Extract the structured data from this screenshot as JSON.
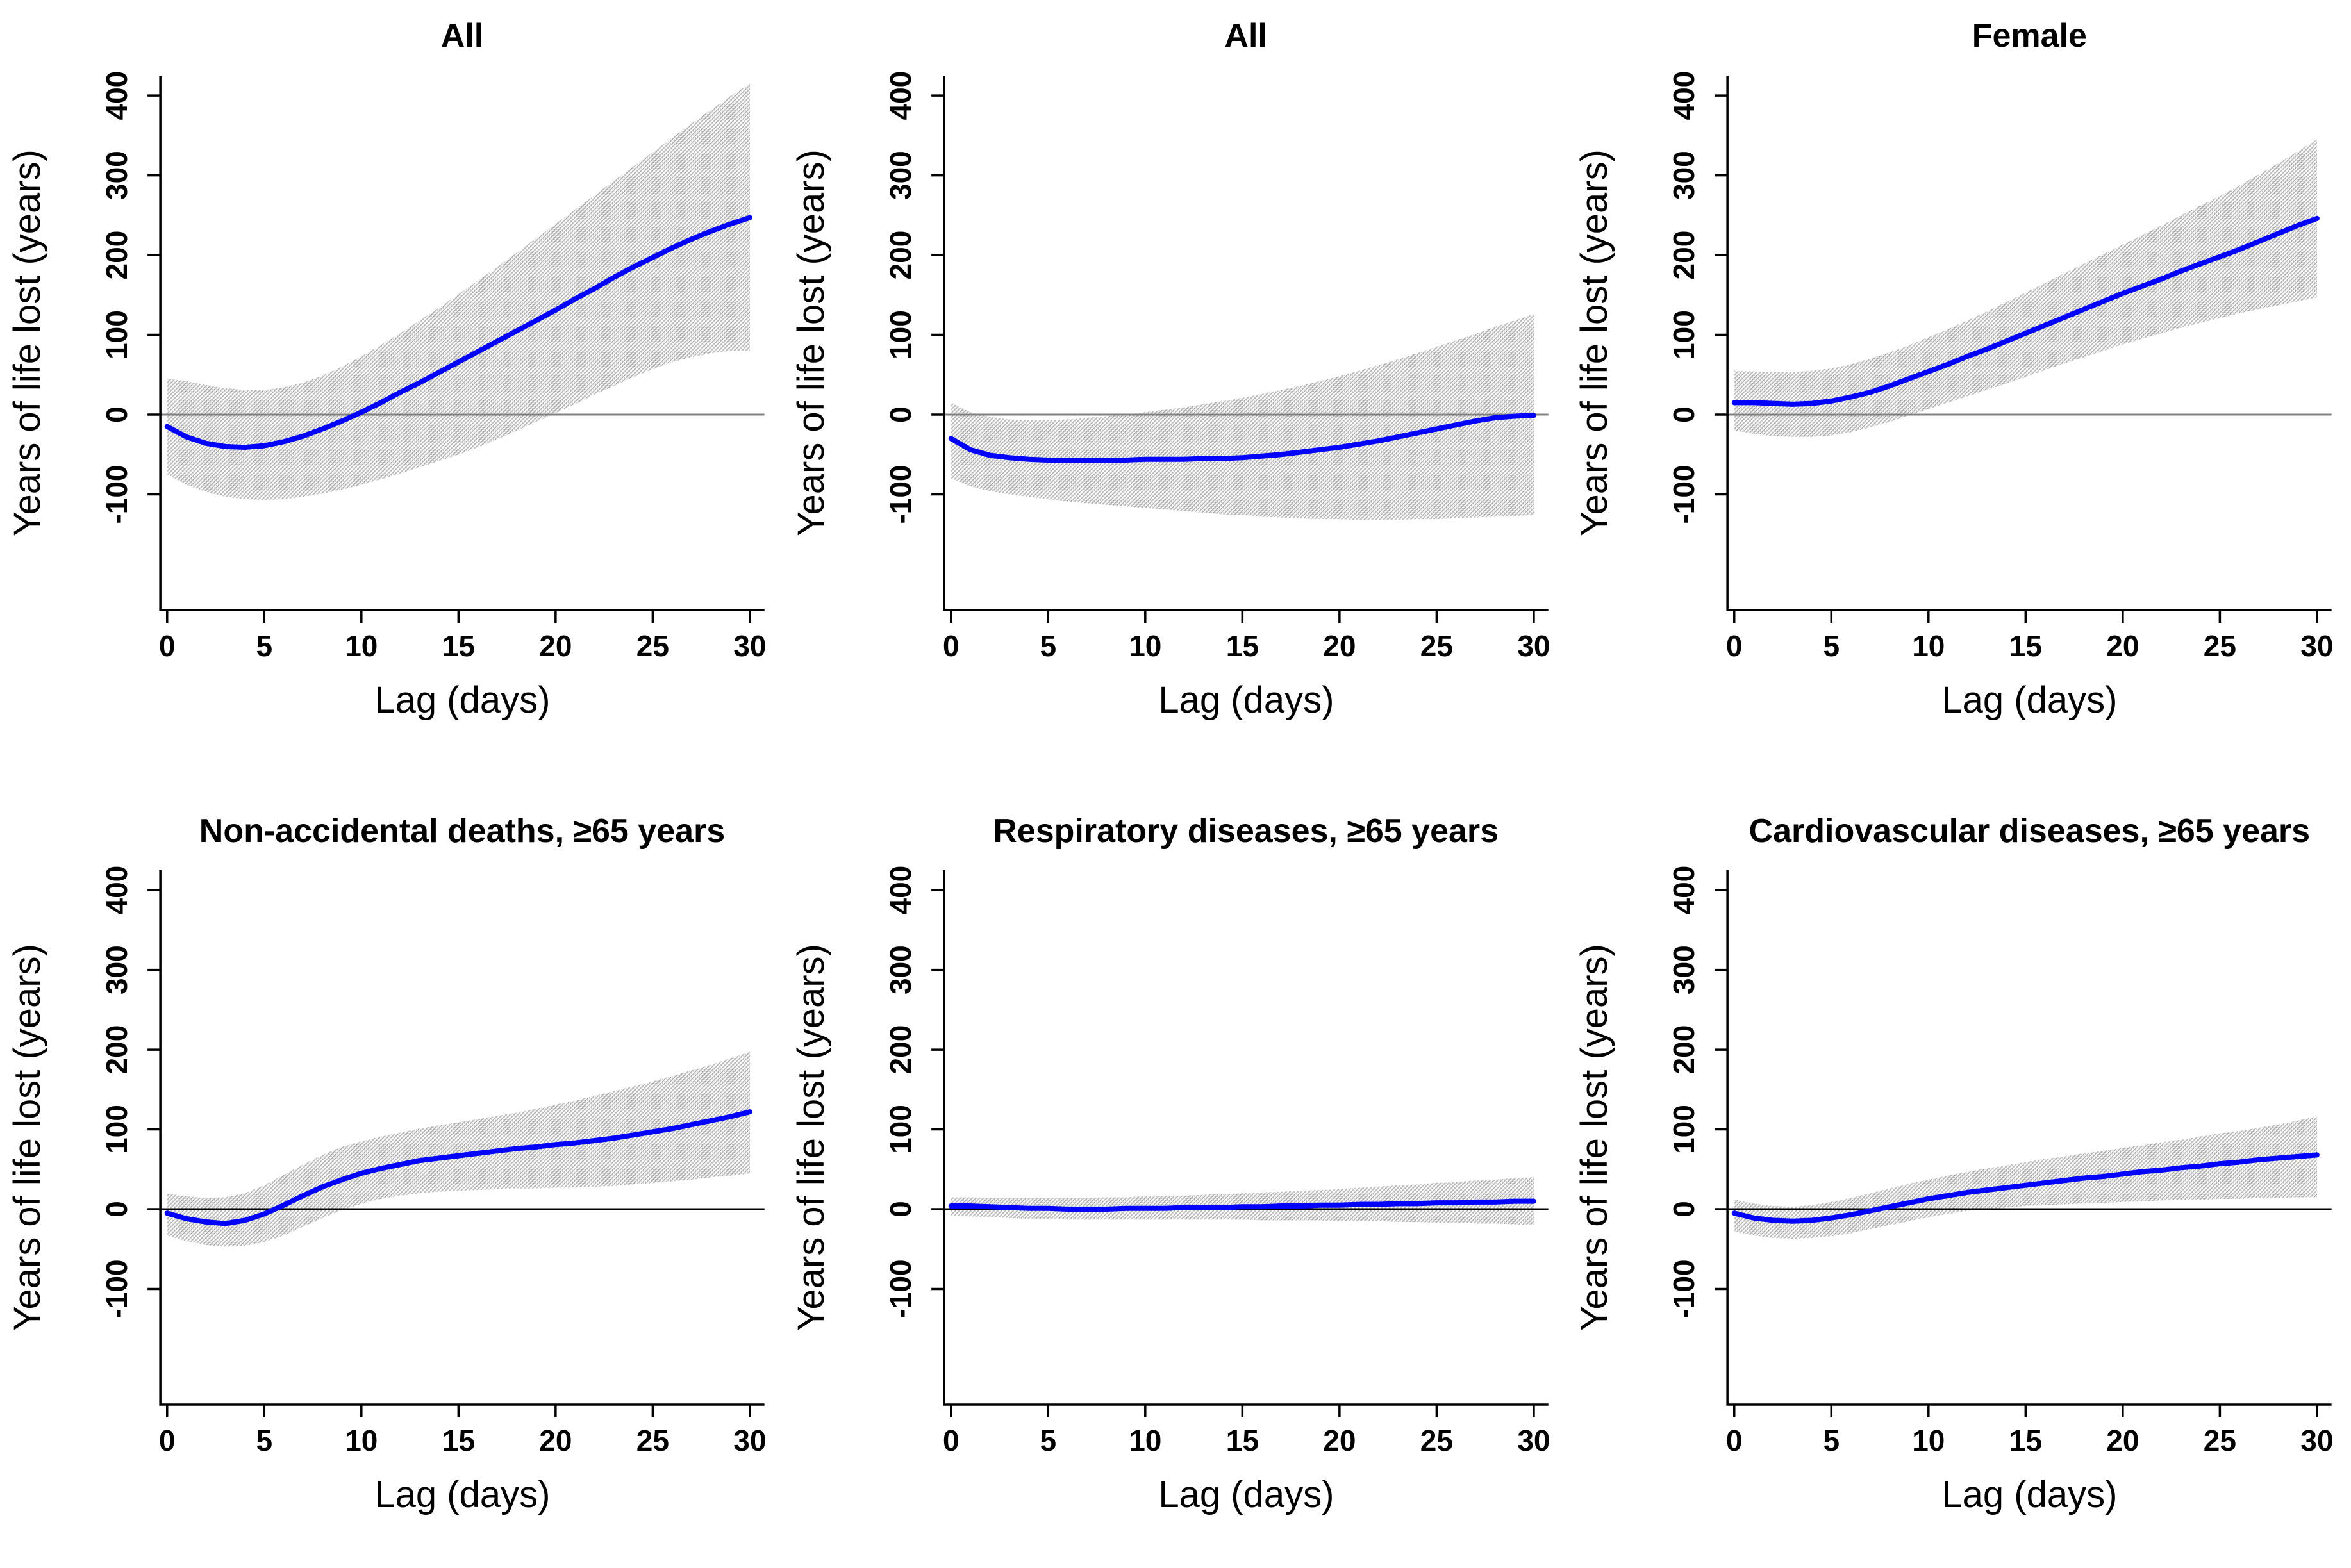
{
  "figure": {
    "background": "#ffffff",
    "estimate_color": "#0000ff",
    "axis_color": "#000000",
    "hatch_colors": [
      "#a3a3a3",
      "#cccccc"
    ],
    "rows": 2,
    "cols": 3,
    "band_style": "hatched"
  },
  "chart_data": [
    {
      "type": "line",
      "title": "All",
      "xlabel": "Lag (days)",
      "ylabel": "Years of life lost (years)",
      "xticks": [
        0,
        5,
        10,
        15,
        20,
        25,
        30
      ],
      "yticks": [
        -100,
        0,
        100,
        200,
        300,
        400
      ],
      "xlim": [
        -0.35,
        30.75
      ],
      "ylim": [
        -245,
        425
      ],
      "zero_line_color": "#808080",
      "line_color": "#0000ff",
      "x": [
        0,
        1,
        2,
        3,
        4,
        5,
        6,
        7,
        8,
        9,
        10,
        11,
        12,
        13,
        14,
        15,
        16,
        17,
        18,
        19,
        20,
        21,
        22,
        23,
        24,
        25,
        26,
        27,
        28,
        29,
        30
      ],
      "estimate": [
        -15,
        -28,
        -36,
        -40,
        -41,
        -39,
        -34,
        -27,
        -18,
        -8,
        3,
        15,
        28,
        40,
        53,
        66,
        79,
        92,
        105,
        118,
        131,
        145,
        158,
        172,
        185,
        197,
        209,
        220,
        230,
        239,
        247
      ],
      "ci_lower": [
        -75,
        -88,
        -97,
        -103,
        -106,
        -107,
        -106,
        -103,
        -99,
        -94,
        -88,
        -81,
        -74,
        -66,
        -58,
        -50,
        -41,
        -31,
        -20,
        -9,
        2,
        13,
        25,
        36,
        47,
        57,
        66,
        72,
        77,
        80,
        80
      ],
      "ci_upper": [
        45,
        42,
        37,
        33,
        31,
        31,
        34,
        40,
        49,
        60,
        73,
        87,
        102,
        118,
        134,
        151,
        168,
        185,
        203,
        221,
        239,
        257,
        275,
        293,
        311,
        329,
        347,
        365,
        382,
        399,
        415
      ]
    },
    {
      "type": "line",
      "title": "All",
      "xlabel": "Lag (days)",
      "ylabel": "Years of life lost (years)",
      "xticks": [
        0,
        5,
        10,
        15,
        20,
        25,
        30
      ],
      "yticks": [
        -100,
        0,
        100,
        200,
        300,
        400
      ],
      "xlim": [
        -0.35,
        30.75
      ],
      "ylim": [
        -245,
        425
      ],
      "zero_line_color": "#808080",
      "line_color": "#0000ff",
      "x": [
        0,
        1,
        2,
        3,
        4,
        5,
        6,
        7,
        8,
        9,
        10,
        11,
        12,
        13,
        14,
        15,
        16,
        17,
        18,
        19,
        20,
        21,
        22,
        23,
        24,
        25,
        26,
        27,
        28,
        29,
        30
      ],
      "estimate": [
        -30,
        -44,
        -51,
        -54,
        -56,
        -57,
        -57,
        -57,
        -57,
        -57,
        -56,
        -56,
        -56,
        -55,
        -55,
        -54,
        -52,
        -50,
        -47,
        -44,
        -41,
        -37,
        -33,
        -28,
        -23,
        -18,
        -13,
        -8,
        -4,
        -2,
        -1
      ],
      "ci_lower": [
        -80,
        -90,
        -96,
        -100,
        -103,
        -106,
        -109,
        -111,
        -113,
        -115,
        -117,
        -119,
        -121,
        -123,
        -125,
        -126,
        -128,
        -129,
        -130,
        -131,
        -131,
        -132,
        -132,
        -132,
        -131,
        -131,
        -130,
        -129,
        -128,
        -127,
        -126
      ],
      "ci_upper": [
        15,
        3,
        -3,
        -6,
        -7,
        -7,
        -6,
        -4,
        -2,
        0,
        3,
        6,
        9,
        13,
        17,
        21,
        26,
        31,
        36,
        42,
        48,
        55,
        62,
        69,
        77,
        85,
        93,
        101,
        110,
        118,
        126
      ]
    },
    {
      "type": "line",
      "title": "Female",
      "xlabel": "Lag (days)",
      "ylabel": "Years of life lost (years)",
      "xticks": [
        0,
        5,
        10,
        15,
        20,
        25,
        30
      ],
      "yticks": [
        -100,
        0,
        100,
        200,
        300,
        400
      ],
      "xlim": [
        -0.35,
        30.75
      ],
      "ylim": [
        -245,
        425
      ],
      "zero_line_color": "#808080",
      "line_color": "#0000ff",
      "x": [
        0,
        1,
        2,
        3,
        4,
        5,
        6,
        7,
        8,
        9,
        10,
        11,
        12,
        13,
        14,
        15,
        16,
        17,
        18,
        19,
        20,
        21,
        22,
        23,
        24,
        25,
        26,
        27,
        28,
        29,
        30
      ],
      "estimate": [
        15,
        15,
        14,
        13,
        14,
        17,
        22,
        28,
        36,
        45,
        54,
        63,
        73,
        82,
        92,
        102,
        112,
        122,
        132,
        142,
        152,
        161,
        170,
        180,
        189,
        198,
        207,
        217,
        227,
        237,
        246
      ],
      "ci_lower": [
        -20,
        -24,
        -27,
        -28,
        -28,
        -26,
        -22,
        -16,
        -9,
        -1,
        7,
        15,
        23,
        31,
        39,
        47,
        56,
        64,
        72,
        80,
        88,
        95,
        102,
        109,
        115,
        121,
        127,
        132,
        137,
        142,
        147
      ],
      "ci_upper": [
        55,
        54,
        53,
        53,
        55,
        58,
        63,
        70,
        78,
        87,
        97,
        107,
        118,
        129,
        141,
        153,
        165,
        177,
        189,
        201,
        213,
        225,
        237,
        250,
        262,
        274,
        287,
        301,
        315,
        330,
        345
      ]
    },
    {
      "type": "line",
      "title": "Non-accidental deaths, ≥65 years",
      "xlabel": "Lag (days)",
      "ylabel": "Years of life lost (years)",
      "xticks": [
        0,
        5,
        10,
        15,
        20,
        25,
        30
      ],
      "yticks": [
        -100,
        0,
        100,
        200,
        300,
        400
      ],
      "xlim": [
        -0.35,
        30.75
      ],
      "ylim": [
        -245,
        425
      ],
      "zero_line_color": "#000000",
      "line_color": "#0000ff",
      "x": [
        0,
        1,
        2,
        3,
        4,
        5,
        6,
        7,
        8,
        9,
        10,
        11,
        12,
        13,
        14,
        15,
        16,
        17,
        18,
        19,
        20,
        21,
        22,
        23,
        24,
        25,
        26,
        27,
        28,
        29,
        30
      ],
      "estimate": [
        -5,
        -12,
        -16,
        -18,
        -14,
        -6,
        5,
        17,
        28,
        37,
        45,
        51,
        56,
        61,
        64,
        67,
        70,
        73,
        76,
        78,
        81,
        83,
        86,
        89,
        93,
        97,
        101,
        106,
        111,
        116,
        122
      ],
      "ci_lower": [
        -33,
        -40,
        -45,
        -47,
        -46,
        -41,
        -33,
        -22,
        -11,
        -1,
        7,
        13,
        17,
        20,
        22,
        23,
        24,
        25,
        26,
        26,
        27,
        27,
        28,
        29,
        31,
        33,
        35,
        37,
        40,
        42,
        45
      ],
      "ci_upper": [
        20,
        16,
        14,
        15,
        20,
        30,
        43,
        56,
        68,
        78,
        85,
        91,
        96,
        101,
        105,
        109,
        113,
        117,
        121,
        126,
        131,
        136,
        142,
        148,
        154,
        160,
        167,
        174,
        181,
        189,
        197
      ]
    },
    {
      "type": "line",
      "title": "Respiratory diseases, ≥65 years",
      "xlabel": "Lag (days)",
      "ylabel": "Years of life lost (years)",
      "xticks": [
        0,
        5,
        10,
        15,
        20,
        25,
        30
      ],
      "yticks": [
        -100,
        0,
        100,
        200,
        300,
        400
      ],
      "xlim": [
        -0.35,
        30.75
      ],
      "ylim": [
        -245,
        425
      ],
      "zero_line_color": "#000000",
      "line_color": "#0000ff",
      "x": [
        0,
        1,
        2,
        3,
        4,
        5,
        6,
        7,
        8,
        9,
        10,
        11,
        12,
        13,
        14,
        15,
        16,
        17,
        18,
        19,
        20,
        21,
        22,
        23,
        24,
        25,
        26,
        27,
        28,
        29,
        30
      ],
      "estimate": [
        4,
        4,
        3,
        2,
        1,
        1,
        0,
        0,
        0,
        1,
        1,
        1,
        2,
        2,
        2,
        3,
        3,
        4,
        4,
        5,
        5,
        6,
        6,
        7,
        7,
        8,
        8,
        9,
        9,
        10,
        10
      ],
      "ci_lower": [
        -8,
        -9,
        -10,
        -11,
        -12,
        -12,
        -13,
        -13,
        -13,
        -13,
        -13,
        -13,
        -13,
        -13,
        -13,
        -13,
        -14,
        -14,
        -14,
        -14,
        -15,
        -15,
        -15,
        -16,
        -16,
        -17,
        -17,
        -18,
        -18,
        -19,
        -20
      ],
      "ci_upper": [
        15,
        15,
        14,
        14,
        14,
        14,
        14,
        14,
        15,
        15,
        16,
        16,
        17,
        18,
        19,
        20,
        21,
        22,
        23,
        24,
        25,
        27,
        28,
        30,
        31,
        33,
        34,
        36,
        37,
        39,
        40
      ]
    },
    {
      "type": "line",
      "title": "Cardiovascular diseases, ≥65 years",
      "xlabel": "Lag (days)",
      "ylabel": "Years of life lost (years)",
      "xticks": [
        0,
        5,
        10,
        15,
        20,
        25,
        30
      ],
      "yticks": [
        -100,
        0,
        100,
        200,
        300,
        400
      ],
      "xlim": [
        -0.35,
        30.75
      ],
      "ylim": [
        -245,
        425
      ],
      "zero_line_color": "#000000",
      "line_color": "#0000ff",
      "x": [
        0,
        1,
        2,
        3,
        4,
        5,
        6,
        7,
        8,
        9,
        10,
        11,
        12,
        13,
        14,
        15,
        16,
        17,
        18,
        19,
        20,
        21,
        22,
        23,
        24,
        25,
        26,
        27,
        28,
        29,
        30
      ],
      "estimate": [
        -5,
        -11,
        -14,
        -15,
        -14,
        -11,
        -7,
        -2,
        3,
        8,
        13,
        17,
        21,
        24,
        27,
        30,
        33,
        36,
        39,
        41,
        44,
        47,
        49,
        52,
        54,
        57,
        59,
        62,
        64,
        66,
        68
      ],
      "ci_lower": [
        -28,
        -33,
        -36,
        -37,
        -36,
        -34,
        -30,
        -25,
        -20,
        -15,
        -10,
        -6,
        -2,
        0,
        2,
        4,
        5,
        6,
        7,
        8,
        9,
        10,
        11,
        12,
        12,
        13,
        13,
        14,
        14,
        15,
        15
      ],
      "ci_upper": [
        12,
        7,
        4,
        3,
        5,
        9,
        14,
        20,
        26,
        32,
        37,
        42,
        47,
        51,
        55,
        59,
        63,
        66,
        70,
        73,
        77,
        80,
        84,
        87,
        91,
        95,
        98,
        102,
        106,
        111,
        116
      ]
    }
  ]
}
